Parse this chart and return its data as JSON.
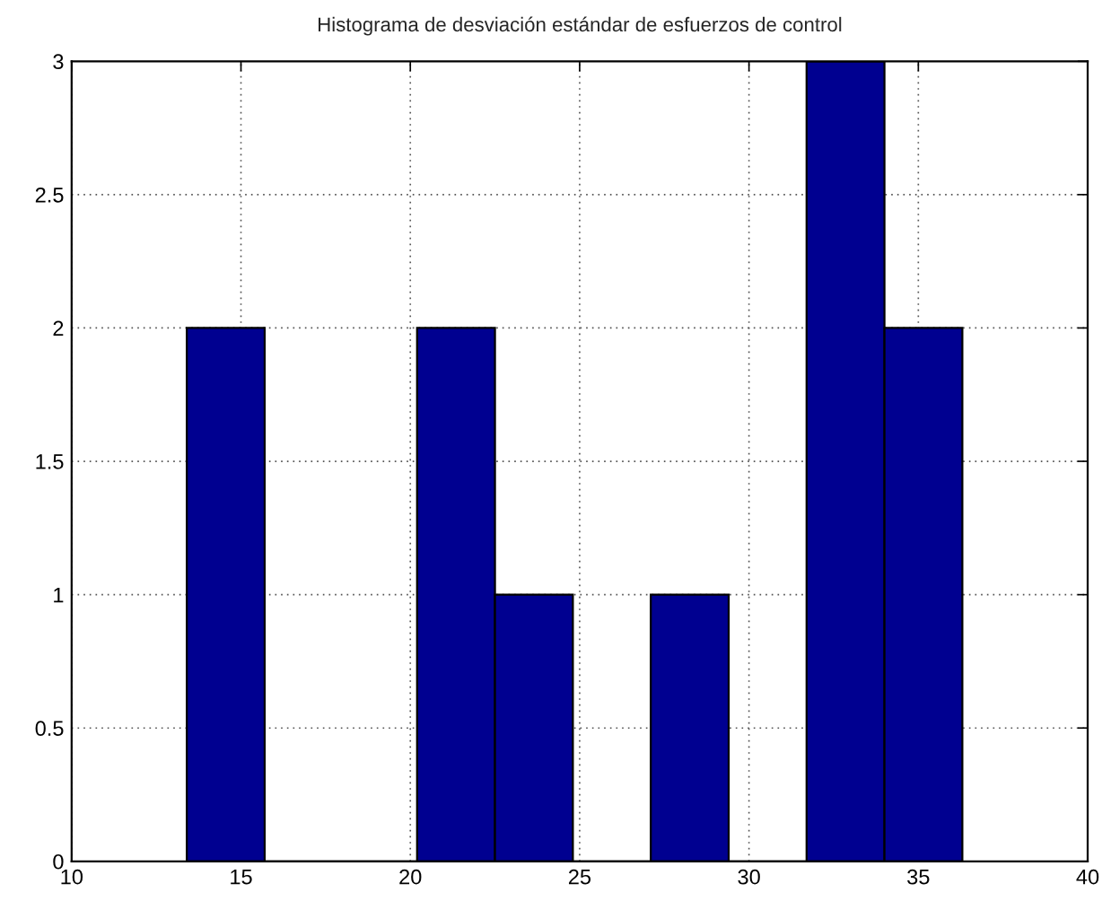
{
  "chart_data": {
    "type": "histogram",
    "title": "Histograma de desviación estándar de esfuerzos de control",
    "bins": [
      13.4,
      15.7,
      20.2,
      22.5,
      24.8,
      27.1,
      29.4,
      31.7,
      34.0,
      36.3
    ],
    "values": [
      2,
      0,
      2,
      1,
      0,
      1,
      0,
      3,
      2
    ],
    "color": "#000090",
    "xlim": [
      10,
      40
    ],
    "xticks": [
      10,
      15,
      20,
      25,
      30,
      35,
      40
    ],
    "ylim": [
      0,
      3
    ],
    "yticks": [
      0,
      0.5,
      1,
      1.5,
      2,
      2.5,
      3
    ],
    "grid": true
  }
}
